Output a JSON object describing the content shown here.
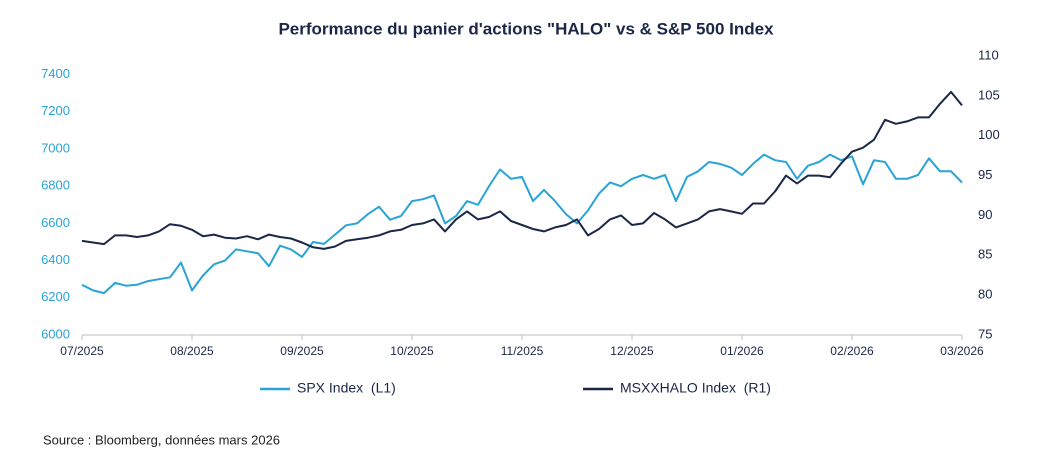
{
  "chart_data": {
    "type": "line",
    "title": "Performance du panier d'actions \"HALO\" vs & S&P 500 Index",
    "source": "Source : Bloomberg, données mars 2026",
    "x": [
      0,
      0.1,
      0.2,
      0.3,
      0.4,
      0.5,
      0.6,
      0.7,
      0.8,
      0.9,
      1,
      1.1,
      1.2,
      1.3,
      1.4,
      1.5,
      1.6,
      1.7,
      1.8,
      1.9,
      2,
      2.1,
      2.2,
      2.3,
      2.4,
      2.5,
      2.6,
      2.7,
      2.8,
      2.9,
      3,
      3.1,
      3.2,
      3.3,
      3.4,
      3.5,
      3.6,
      3.7,
      3.8,
      3.9,
      4,
      4.1,
      4.2,
      4.3,
      4.4,
      4.5,
      4.6,
      4.7,
      4.8,
      4.9,
      5,
      5.1,
      5.2,
      5.3,
      5.4,
      5.5,
      5.6,
      5.7,
      5.8,
      5.9,
      6,
      6.1,
      6.2,
      6.3,
      6.4,
      6.5,
      6.6,
      6.7,
      6.8,
      6.9,
      7,
      7.1,
      7.2,
      7.3,
      7.4,
      7.5,
      7.6,
      7.7,
      7.8,
      7.9,
      8
    ],
    "xlim": [
      0,
      8
    ],
    "xticks": [
      {
        "value": 0,
        "label": "07/2025"
      },
      {
        "value": 1,
        "label": "08/2025"
      },
      {
        "value": 2,
        "label": "09/2025"
      },
      {
        "value": 3,
        "label": "10/2025"
      },
      {
        "value": 4,
        "label": "11/2025"
      },
      {
        "value": 5,
        "label": "12/2025"
      },
      {
        "value": 6,
        "label": "01/2026"
      },
      {
        "value": 7,
        "label": "02/2026"
      },
      {
        "value": 8,
        "label": "03/2026"
      }
    ],
    "ylim": [
      6000,
      7500
    ],
    "yticks": [
      6000,
      6200,
      6400,
      6600,
      6800,
      7000,
      7200,
      7400
    ],
    "y2lim": [
      75,
      110
    ],
    "y2ticks": [
      75,
      80,
      85,
      90,
      95,
      100,
      105,
      110
    ],
    "series": [
      {
        "name": "SPX Index  (L1)",
        "color": "#2aa3d6",
        "axis": "y",
        "values": [
          6270,
          6240,
          6225,
          6280,
          6265,
          6270,
          6290,
          6300,
          6310,
          6390,
          6240,
          6320,
          6380,
          6400,
          6460,
          6450,
          6440,
          6370,
          6480,
          6460,
          6420,
          6500,
          6490,
          6540,
          6590,
          6600,
          6650,
          6690,
          6620,
          6640,
          6720,
          6730,
          6750,
          6600,
          6640,
          6720,
          6700,
          6800,
          6890,
          6840,
          6850,
          6720,
          6780,
          6720,
          6650,
          6600,
          6670,
          6760,
          6820,
          6800,
          6840,
          6860,
          6840,
          6860,
          6720,
          6850,
          6880,
          6930,
          6920,
          6900,
          6860,
          6920,
          6970,
          6940,
          6930,
          6840,
          6910,
          6930,
          6970,
          6940,
          6960,
          6810,
          6940,
          6930,
          6840,
          6840,
          6860,
          6950,
          6880,
          6880,
          6820
        ]
      },
      {
        "name": "MSXXHALO Index  (R1)",
        "color": "#1b2747",
        "axis": "y2",
        "values": [
          86.8,
          86.6,
          86.4,
          87.5,
          87.5,
          87.3,
          87.5,
          88.0,
          88.9,
          88.7,
          88.2,
          87.4,
          87.6,
          87.2,
          87.1,
          87.4,
          87.0,
          87.6,
          87.3,
          87.1,
          86.6,
          86.0,
          85.8,
          86.1,
          86.8,
          87.0,
          87.2,
          87.5,
          88.0,
          88.2,
          88.8,
          89.0,
          89.5,
          88.0,
          89.5,
          90.5,
          89.5,
          89.8,
          90.5,
          89.3,
          88.8,
          88.3,
          88.0,
          88.5,
          88.8,
          89.5,
          87.5,
          88.3,
          89.5,
          90.0,
          88.8,
          89.0,
          90.3,
          89.5,
          88.5,
          89.0,
          89.5,
          90.5,
          90.8,
          90.5,
          90.2,
          91.5,
          91.5,
          93.0,
          95.0,
          94.0,
          95.0,
          95.0,
          94.8,
          96.5,
          98.0,
          98.5,
          99.5,
          102.0,
          101.5,
          101.8,
          102.3,
          102.3,
          104.0,
          105.5,
          103.8
        ]
      }
    ]
  }
}
